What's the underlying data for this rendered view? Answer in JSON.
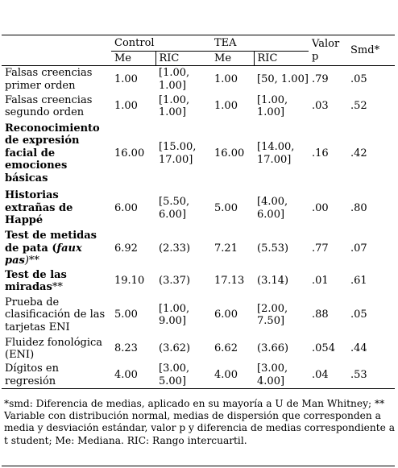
{
  "header": {
    "control": "Control",
    "tea": "TEA",
    "valor_p": "Valor p",
    "smd": "Smd*",
    "me": "Me",
    "ric": "RIC"
  },
  "rows": [
    {
      "label": "Falsas creencias primer orden",
      "bold": false,
      "c_me": "1.00",
      "c_ric": "[1.00, 1.00]",
      "t_me": "1.00",
      "t_ric": "[50, 1.00]",
      "p": ".79",
      "smd": ".05"
    },
    {
      "label": "Falsas creencias segundo orden",
      "bold": false,
      "c_me": "1.00",
      "c_ric": "[1.00, 1.00]",
      "t_me": "1.00",
      "t_ric": "[1.00, 1.00]",
      "p": ".03",
      "smd": ".52"
    },
    {
      "label": "Reconocimiento de expresión facial de emociones básicas",
      "bold": true,
      "c_me": "16.00",
      "c_ric": "[15.00, 17.00]",
      "t_me": "16.00",
      "t_ric": "[14.00, 17.00]",
      "p": ".16",
      "smd": ".42"
    },
    {
      "label": "Historias extrañas de Happé",
      "bold": true,
      "c_me": "6.00",
      "c_ric": "[5.50, 6.00]",
      "t_me": "5.00",
      "t_ric": "[4.00, 6.00]",
      "p": ".00",
      "smd": ".80"
    },
    {
      "label_a": "Test de metidas de pata (",
      "label_b": "faux pas",
      "label_c": ")**",
      "bold": true,
      "c_me": "6.92",
      "c_ric": "(2.33)",
      "t_me": "7.21",
      "t_ric": "(5.53)",
      "p": ".77",
      "smd": ".07"
    },
    {
      "label_a": "Test de las miradas",
      "label_c": "**",
      "bold": true,
      "c_me": "19.10",
      "c_ric": "(3.37)",
      "t_me": "17.13",
      "t_ric": "(3.14)",
      "p": ".01",
      "smd": ".61"
    },
    {
      "label": "Prueba de clasificación de las tarjetas ENI",
      "bold": false,
      "c_me": "5.00",
      "c_ric": "[1.00, 9.00]",
      "t_me": "6.00",
      "t_ric": "[2.00, 7.50]",
      "p": ".88",
      "smd": ".05"
    },
    {
      "label": "Fluidez fonológica (ENI)",
      "bold": false,
      "c_me": "8.23",
      "c_ric": "(3.62)",
      "t_me": "6.62",
      "t_ric": "(3.66)",
      "p": ".054",
      "smd": ".44"
    },
    {
      "label": "Dígitos en regresión",
      "bold": false,
      "c_me": "4.00",
      "c_ric": "[3.00, 5.00]",
      "t_me": "4.00",
      "t_ric": "[3.00, 4.00]",
      "p": ".04",
      "smd": ".53"
    }
  ],
  "footnote": "*smd: Diferencia de medias, aplicado en su mayoría a U de Man Whitney; ** Variable con distribución normal, medias de dispersión que corresponden a media y desviación estándar, valor p y diferencia de medias correspondiente a t student; Me: Mediana. RIC: Rango intercuartil."
}
